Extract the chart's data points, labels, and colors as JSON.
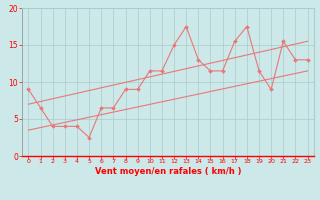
{
  "xlabel": "Vent moyen/en rafales ( km/h )",
  "xlim": [
    -0.5,
    23.5
  ],
  "ylim": [
    0,
    20
  ],
  "xticks": [
    0,
    1,
    2,
    3,
    4,
    5,
    6,
    7,
    8,
    9,
    10,
    11,
    12,
    13,
    14,
    15,
    16,
    17,
    18,
    19,
    20,
    21,
    22,
    23
  ],
  "yticks": [
    0,
    5,
    10,
    15,
    20
  ],
  "bg_color": "#cce8e8",
  "line_color": "#e87878",
  "grid_color": "#aacccc",
  "main_x": [
    0,
    1,
    2,
    3,
    4,
    5,
    6,
    7,
    8,
    9,
    10,
    11,
    12,
    13,
    14,
    15,
    16,
    17,
    18,
    19,
    20,
    21,
    22,
    23
  ],
  "main_y": [
    9.0,
    6.5,
    4.0,
    4.0,
    4.0,
    2.5,
    6.5,
    6.5,
    9.0,
    9.0,
    11.5,
    11.5,
    15.0,
    17.5,
    13.0,
    11.5,
    11.5,
    15.5,
    17.5,
    11.5,
    9.0,
    15.5,
    13.0,
    13.0
  ],
  "trend1_x": [
    0,
    23
  ],
  "trend1_y": [
    3.5,
    11.5
  ],
  "trend2_x": [
    0,
    23
  ],
  "trend2_y": [
    7.0,
    15.5
  ]
}
